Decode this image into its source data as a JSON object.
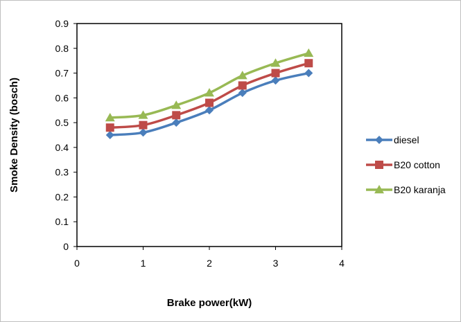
{
  "chart_data": {
    "type": "line",
    "xlabel": "Brake power(kW)",
    "ylabel": "Smoke Density (bosch)",
    "xlim": [
      0,
      4
    ],
    "ylim": [
      0,
      0.9
    ],
    "x_ticks": [
      "0",
      "1",
      "2",
      "3",
      "4"
    ],
    "y_ticks": [
      "0",
      "0.1",
      "0.2",
      "0.3",
      "0.4",
      "0.5",
      "0.6",
      "0.7",
      "0.8",
      "0.9"
    ],
    "x": [
      0.5,
      1,
      1.5,
      2,
      2.5,
      3,
      3.5
    ],
    "grid": false,
    "smooth": true,
    "legend_position": "right",
    "series": [
      {
        "name": "diesel",
        "values": [
          0.45,
          0.46,
          0.5,
          0.55,
          0.62,
          0.67,
          0.7
        ],
        "color": "#4A7EBB",
        "marker": "diamond"
      },
      {
        "name": "B20 cotton",
        "values": [
          0.48,
          0.49,
          0.53,
          0.58,
          0.65,
          0.7,
          0.74
        ],
        "color": "#BE4B48",
        "marker": "square"
      },
      {
        "name": "B20 karanja",
        "values": [
          0.52,
          0.53,
          0.57,
          0.62,
          0.69,
          0.74,
          0.78
        ],
        "color": "#98B954",
        "marker": "triangle"
      }
    ]
  }
}
